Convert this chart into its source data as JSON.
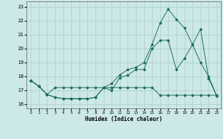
{
  "title": "",
  "xlabel": "Humidex (Indice chaleur)",
  "bg_color": "#cce8e8",
  "line_color": "#1a6b5a",
  "grid_color": "#aacccc",
  "xlim": [
    -0.5,
    23.5
  ],
  "ylim": [
    15.7,
    23.4
  ],
  "yticks": [
    16,
    17,
    18,
    19,
    20,
    21,
    22,
    23
  ],
  "x_labels": [
    "0",
    "1",
    "2",
    "3",
    "4",
    "5",
    "6",
    "7",
    "8",
    "9",
    "10",
    "11",
    "12",
    "13",
    "14",
    "15",
    "16",
    "17",
    "18",
    "19",
    "20",
    "21",
    "22",
    "23"
  ],
  "line1_x": [
    0,
    1,
    2,
    3,
    4,
    5,
    6,
    7,
    8,
    9,
    10,
    11,
    12,
    13,
    14,
    15,
    16,
    17,
    18,
    19,
    20,
    21,
    22,
    23
  ],
  "line1_y": [
    17.7,
    17.3,
    16.7,
    16.5,
    16.4,
    16.4,
    16.4,
    16.4,
    16.5,
    17.2,
    17.0,
    17.9,
    18.1,
    18.5,
    18.5,
    20.0,
    20.6,
    20.6,
    18.5,
    19.3,
    20.3,
    21.4,
    17.85,
    16.6
  ],
  "line2_x": [
    0,
    1,
    2,
    3,
    4,
    5,
    6,
    7,
    8,
    9,
    10,
    11,
    12,
    13,
    14,
    15,
    16,
    17,
    18,
    19,
    20,
    21,
    22,
    23
  ],
  "line2_y": [
    17.7,
    17.3,
    16.7,
    17.2,
    17.2,
    17.2,
    17.2,
    17.2,
    17.2,
    17.2,
    17.2,
    17.2,
    17.2,
    17.2,
    17.2,
    17.2,
    16.65,
    16.65,
    16.65,
    16.65,
    16.65,
    16.65,
    16.65,
    16.65
  ],
  "line3_x": [
    0,
    1,
    2,
    3,
    4,
    5,
    6,
    7,
    8,
    9,
    10,
    11,
    12,
    13,
    14,
    15,
    16,
    17,
    18,
    19,
    20,
    21,
    22,
    23
  ],
  "line3_y": [
    17.7,
    17.3,
    16.7,
    16.5,
    16.4,
    16.4,
    16.4,
    16.4,
    16.5,
    17.2,
    17.5,
    18.1,
    18.5,
    18.65,
    19.0,
    20.3,
    21.85,
    22.85,
    22.1,
    21.5,
    20.3,
    19.0,
    18.0,
    16.6
  ]
}
